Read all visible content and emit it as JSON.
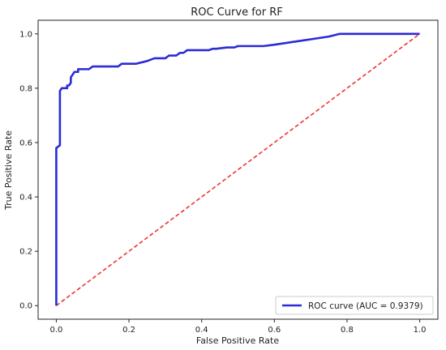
{
  "chart_data": {
    "type": "line",
    "title": "ROC Curve for RF",
    "xlabel": "False Positive Rate",
    "ylabel": "True Positive Rate",
    "xlim": [
      -0.05,
      1.05
    ],
    "ylim": [
      -0.05,
      1.05
    ],
    "xticks": [
      "0.0",
      "0.2",
      "0.4",
      "0.6",
      "0.8",
      "1.0"
    ],
    "yticks": [
      "0.0",
      "0.2",
      "0.4",
      "0.6",
      "0.8",
      "1.0"
    ],
    "grid": false,
    "legend_position": "lower-right",
    "series": [
      {
        "name": "ROC curve (AUC = 0.9379)",
        "color": "#2b2bd8",
        "style": "solid",
        "x": [
          0.0,
          0.0,
          0.0,
          0.01,
          0.01,
          0.015,
          0.02,
          0.03,
          0.03,
          0.035,
          0.04,
          0.04,
          0.045,
          0.05,
          0.05,
          0.06,
          0.06,
          0.08,
          0.09,
          0.1,
          0.12,
          0.15,
          0.17,
          0.18,
          0.22,
          0.25,
          0.27,
          0.3,
          0.31,
          0.32,
          0.33,
          0.34,
          0.35,
          0.36,
          0.37,
          0.4,
          0.42,
          0.43,
          0.44,
          0.47,
          0.49,
          0.5,
          0.55,
          0.57,
          0.6,
          0.65,
          0.7,
          0.75,
          0.78,
          0.8,
          0.9,
          1.0
        ],
        "y": [
          0.0,
          0.58,
          0.58,
          0.59,
          0.79,
          0.8,
          0.8,
          0.8,
          0.81,
          0.81,
          0.82,
          0.84,
          0.85,
          0.86,
          0.86,
          0.86,
          0.87,
          0.87,
          0.87,
          0.88,
          0.88,
          0.88,
          0.88,
          0.89,
          0.89,
          0.9,
          0.91,
          0.91,
          0.92,
          0.92,
          0.92,
          0.93,
          0.93,
          0.94,
          0.94,
          0.94,
          0.94,
          0.945,
          0.945,
          0.95,
          0.95,
          0.955,
          0.955,
          0.955,
          0.96,
          0.97,
          0.98,
          0.99,
          1.0,
          1.0,
          1.0,
          1.0
        ]
      },
      {
        "name": "",
        "color": "#ee3333",
        "style": "dashed",
        "x": [
          0.0,
          1.0
        ],
        "y": [
          0.0,
          1.0
        ]
      }
    ]
  }
}
